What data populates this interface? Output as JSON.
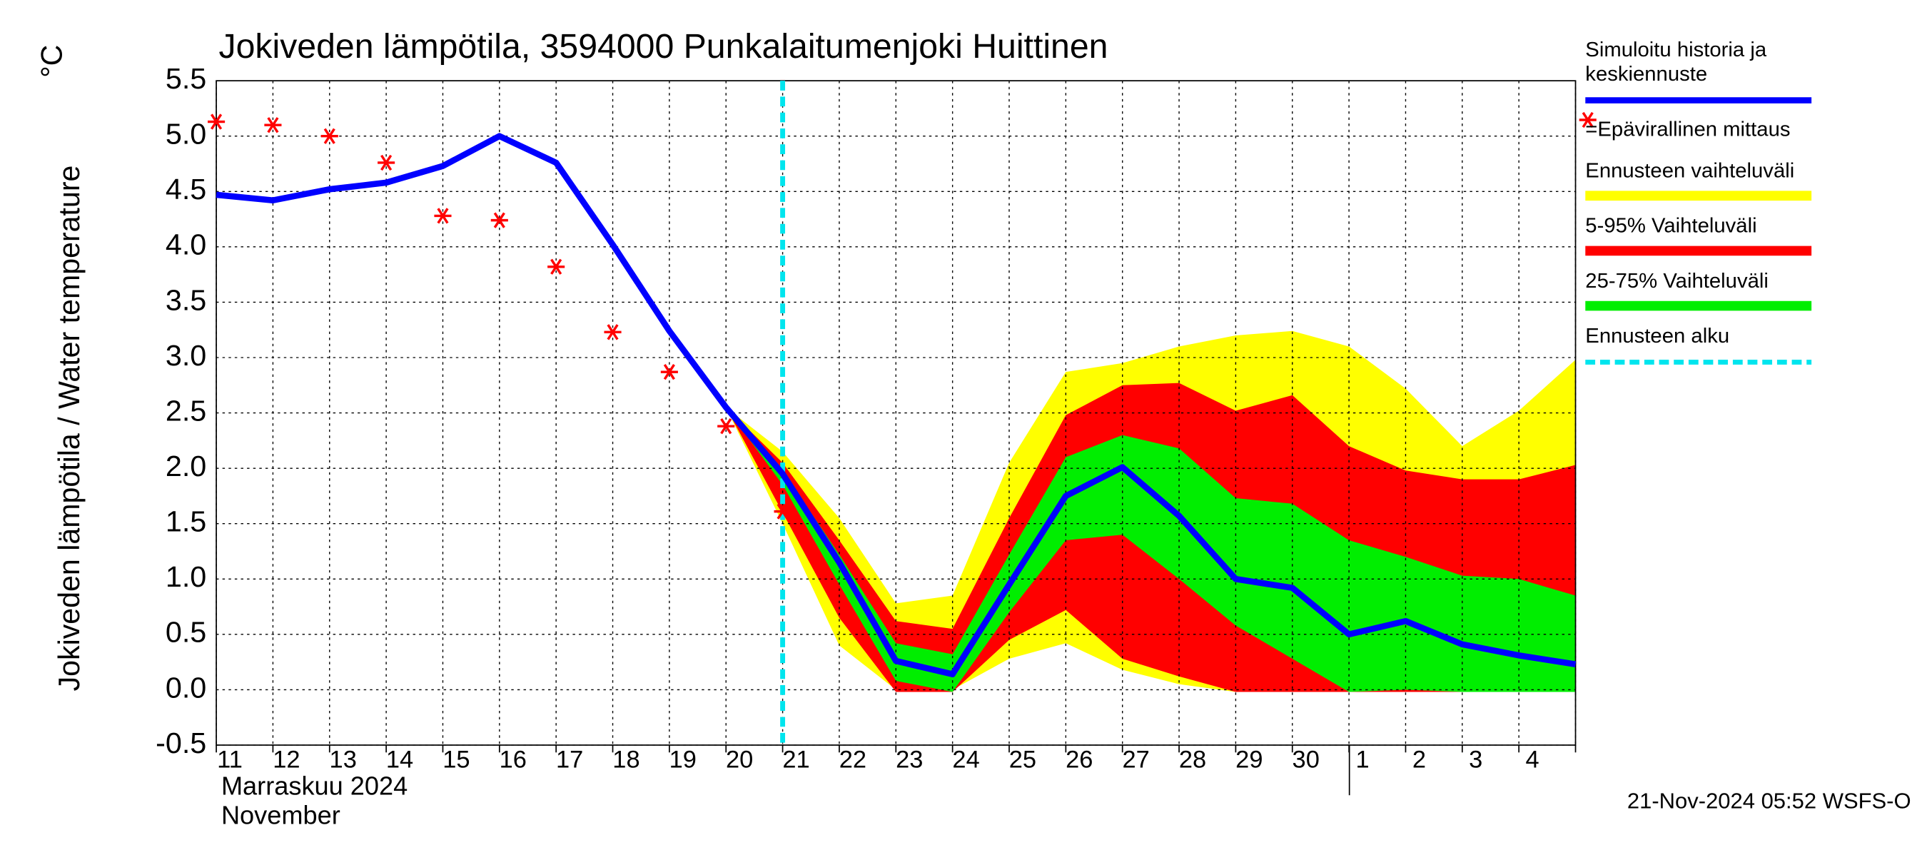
{
  "chart_data": {
    "type": "line",
    "title": "Jokiveden lämpötila, 3594000 Punkalaitumenjoki Huittinen",
    "y_label": "Jokiveden lämpötila / Water temperature",
    "y_unit": "°C",
    "x_label_fi": "Marraskuu 2024",
    "x_label_en": "November",
    "footer": "21-Nov-2024 05:52 WSFS-O",
    "categories": [
      "11",
      "12",
      "13",
      "14",
      "15",
      "16",
      "17",
      "18",
      "19",
      "20",
      "21",
      "22",
      "23",
      "24",
      "25",
      "26",
      "27",
      "28",
      "29",
      "30",
      "1",
      "2",
      "3",
      "4",
      null
    ],
    "ylim": [
      -0.5,
      5.5
    ],
    "yticks": [
      -0.5,
      0.5,
      {
        "value": 0,
        "label": "0.0"
      },
      {
        "value": 1,
        "label": "1.0"
      },
      1.5,
      {
        "value": 2,
        "label": "2.0"
      },
      2.5,
      {
        "value": 3,
        "label": "3.0"
      },
      3.5,
      {
        "value": 4,
        "label": "4.0"
      },
      4.5,
      {
        "value": 5,
        "label": "5.0"
      },
      5.5
    ],
    "grid": true,
    "series": [
      {
        "name": "Simuloitu historia ja keskiennuste",
        "color": "#0000ff",
        "values": [
          4.47,
          4.42,
          4.52,
          4.58,
          4.73,
          5.0,
          4.76,
          4.02,
          3.24,
          2.55,
          1.95,
          1.15,
          0.26,
          0.14,
          0.95,
          1.75,
          2.01,
          1.57,
          1.0,
          0.92,
          0.5,
          0.62,
          0.41,
          0.31,
          0.23
        ]
      },
      {
        "name": "=Epävirallinen mittaus",
        "color": "#ff0000",
        "marker": "asterisk",
        "values": [
          5.13,
          5.1,
          5.0,
          4.76,
          4.28,
          4.24,
          3.82,
          3.23,
          2.87,
          2.38,
          1.61,
          null,
          null,
          null,
          null,
          null,
          null,
          null,
          null,
          null,
          null,
          null,
          null,
          null,
          null
        ]
      }
    ],
    "bands": [
      {
        "name": "Ennusteen vaihteluväli",
        "color": "#ffff00",
        "upper": [
          null,
          null,
          null,
          null,
          null,
          null,
          null,
          null,
          null,
          2.55,
          2.15,
          1.55,
          0.78,
          0.85,
          2.05,
          2.87,
          2.95,
          3.1,
          3.2,
          3.24,
          3.1,
          2.72,
          2.2,
          2.52,
          2.98
        ],
        "lower": [
          null,
          null,
          null,
          null,
          null,
          null,
          null,
          null,
          null,
          2.55,
          1.5,
          0.4,
          0.0,
          0.0,
          0.28,
          0.42,
          0.18,
          0.05,
          -0.02,
          -0.02,
          -0.02,
          -0.02,
          -0.02,
          -0.02,
          -0.02
        ]
      },
      {
        "name": "5-95% Vaihteluväli",
        "color": "#ff0000",
        "upper": [
          null,
          null,
          null,
          null,
          null,
          null,
          null,
          null,
          null,
          2.55,
          2.05,
          1.35,
          0.62,
          0.55,
          1.55,
          2.48,
          2.75,
          2.77,
          2.52,
          2.66,
          2.2,
          1.98,
          1.9,
          1.9,
          2.03
        ],
        "lower": [
          null,
          null,
          null,
          null,
          null,
          null,
          null,
          null,
          null,
          2.55,
          1.6,
          0.65,
          -0.02,
          -0.02,
          0.45,
          0.72,
          0.28,
          0.12,
          -0.02,
          -0.02,
          -0.02,
          -0.02,
          -0.02,
          -0.02,
          -0.02
        ]
      },
      {
        "name": "25-75% Vaihteluväli",
        "color": "#00ee00",
        "upper": [
          null,
          null,
          null,
          null,
          null,
          null,
          null,
          null,
          null,
          2.55,
          1.98,
          1.22,
          0.42,
          0.32,
          1.22,
          2.1,
          2.3,
          2.18,
          1.73,
          1.68,
          1.35,
          1.2,
          1.03,
          1.0,
          0.85
        ],
        "lower": [
          null,
          null,
          null,
          null,
          null,
          null,
          null,
          null,
          null,
          2.55,
          1.85,
          0.95,
          0.08,
          -0.02,
          0.7,
          1.35,
          1.4,
          1.0,
          0.58,
          0.28,
          -0.02,
          0.0,
          -0.02,
          -0.02,
          -0.02
        ]
      }
    ],
    "forecast_start": {
      "name": "Ennusteen alku",
      "color": "#00e5ee",
      "x": 10
    }
  }
}
